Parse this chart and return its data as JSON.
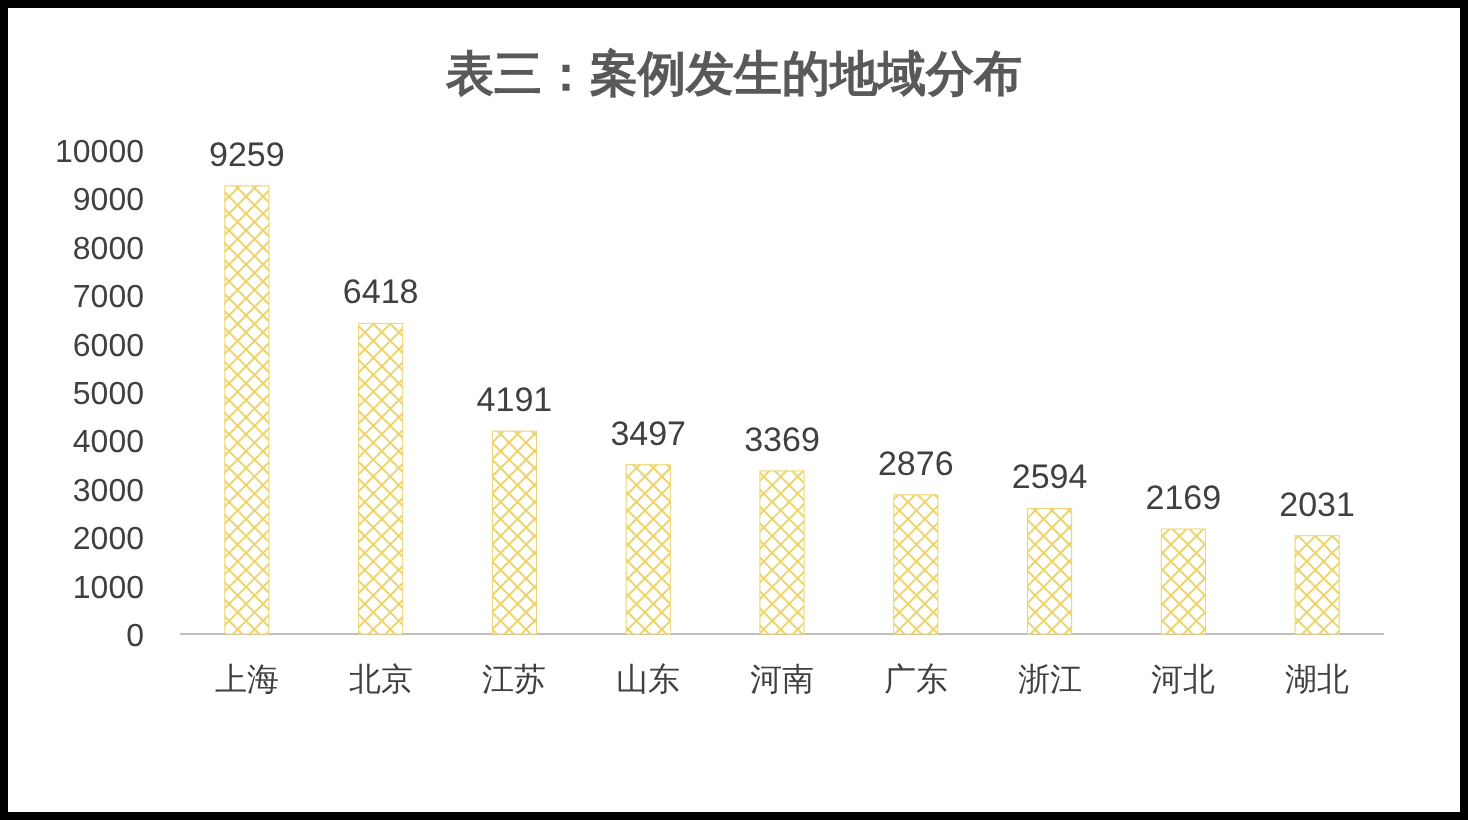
{
  "chart_data": {
    "type": "bar",
    "title": "表三：案例发生的地域分布",
    "categories": [
      "上海",
      "北京",
      "江苏",
      "山东",
      "河南",
      "广东",
      "浙江",
      "河北",
      "湖北"
    ],
    "values": [
      9259,
      6418,
      4191,
      3497,
      3369,
      2876,
      2594,
      2169,
      2031
    ],
    "color": "#ecd46a",
    "ylim": [
      0,
      10000
    ],
    "yticks": [
      0,
      1000,
      2000,
      3000,
      4000,
      5000,
      6000,
      7000,
      8000,
      9000,
      10000
    ],
    "data_labels": true,
    "grid": false
  }
}
